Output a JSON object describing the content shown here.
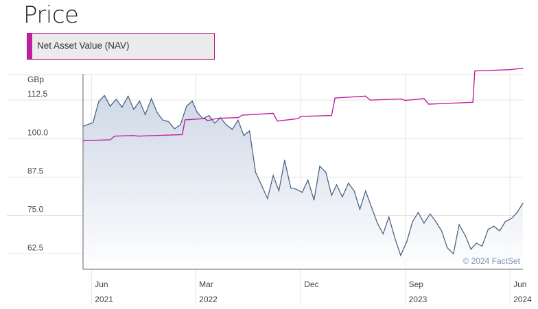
{
  "page": {
    "title": "Price"
  },
  "legend": {
    "label": "Net Asset Value (NAV)"
  },
  "colors": {
    "nav": "#c01ea0",
    "price": "#4a6585",
    "price_fill": "#c8d2e3",
    "grid": "#e3e3e3"
  },
  "chart_data": {
    "type": "line",
    "ylabel": "GBp",
    "ylim": [
      57.5,
      121
    ],
    "yticks": [
      62.5,
      75.0,
      87.5,
      100.0,
      112.5
    ],
    "ytick_labels": [
      "62.5",
      "75.0",
      "87.5",
      "100.0",
      "112.5"
    ],
    "xlim": [
      "2021-05-10",
      "2024-07-05"
    ],
    "xticks": [
      {
        "date": "2021-06-01",
        "month": "Jun",
        "year": "2021"
      },
      {
        "date": "2022-03-01",
        "month": "Mar",
        "year": "2022"
      },
      {
        "date": "2022-12-01",
        "month": "Dec",
        "year": ""
      },
      {
        "date": "2023-09-01",
        "month": "Sep",
        "year": "2023"
      },
      {
        "date": "2024-06-01",
        "month": "Jun",
        "year": "2024"
      }
    ],
    "watermark": "© 2024 FactSet",
    "series": [
      {
        "name": "Net Asset Value (NAV)",
        "style": "step",
        "x": [
          "2021-05-10",
          "2021-07-20",
          "2021-08-01",
          "2021-09-20",
          "2021-10-01",
          "2022-01-25",
          "2022-02-01",
          "2022-03-25",
          "2022-04-01",
          "2022-04-20",
          "2022-05-01",
          "2022-06-20",
          "2022-07-01",
          "2022-09-20",
          "2022-10-01",
          "2022-11-25",
          "2022-12-01",
          "2023-02-20",
          "2023-03-01",
          "2023-05-20",
          "2023-06-01",
          "2023-08-20",
          "2023-09-01",
          "2023-10-20",
          "2023-11-01",
          "2024-02-25",
          "2024-03-01",
          "2024-06-01",
          "2024-07-05"
        ],
        "y": [
          99.3,
          99.6,
          100.8,
          101.0,
          100.8,
          101.3,
          106.1,
          106.5,
          105.8,
          106.4,
          106.6,
          106.8,
          107.6,
          108.2,
          105.7,
          106.5,
          107.2,
          107.5,
          113.2,
          113.8,
          112.5,
          112.9,
          112.4,
          113.0,
          111.2,
          111.8,
          122.0,
          122.4,
          122.9
        ]
      },
      {
        "name": "Price",
        "style": "line",
        "x": [
          "2021-05-10",
          "2021-06-05",
          "2021-06-20",
          "2021-07-05",
          "2021-07-20",
          "2021-08-05",
          "2021-08-20",
          "2021-09-05",
          "2021-09-20",
          "2021-10-05",
          "2021-10-20",
          "2021-11-05",
          "2021-11-20",
          "2021-12-05",
          "2021-12-20",
          "2022-01-05",
          "2022-01-20",
          "2022-02-05",
          "2022-02-20",
          "2022-03-05",
          "2022-03-20",
          "2022-04-05",
          "2022-04-20",
          "2022-05-05",
          "2022-05-20",
          "2022-06-05",
          "2022-06-20",
          "2022-07-05",
          "2022-07-20",
          "2022-08-05",
          "2022-08-20",
          "2022-09-05",
          "2022-09-20",
          "2022-10-05",
          "2022-10-20",
          "2022-11-05",
          "2022-11-20",
          "2022-12-05",
          "2022-12-20",
          "2023-01-05",
          "2023-01-20",
          "2023-02-05",
          "2023-02-20",
          "2023-03-05",
          "2023-03-20",
          "2023-04-05",
          "2023-04-20",
          "2023-05-05",
          "2023-05-20",
          "2023-06-05",
          "2023-06-20",
          "2023-07-05",
          "2023-07-20",
          "2023-08-05",
          "2023-08-20",
          "2023-09-05",
          "2023-09-20",
          "2023-10-05",
          "2023-10-20",
          "2023-11-05",
          "2023-11-20",
          "2023-12-05",
          "2023-12-20",
          "2024-01-05",
          "2024-01-20",
          "2024-02-05",
          "2024-02-20",
          "2024-03-05",
          "2024-03-20",
          "2024-04-05",
          "2024-04-20",
          "2024-05-05",
          "2024-05-20",
          "2024-06-05",
          "2024-06-20",
          "2024-07-05"
        ],
        "y": [
          104.0,
          105.2,
          112.0,
          114.0,
          110.5,
          112.8,
          110.2,
          113.8,
          109.5,
          112.2,
          107.8,
          113.0,
          108.5,
          106.0,
          105.5,
          103.2,
          104.5,
          110.5,
          112.2,
          108.5,
          106.5,
          107.5,
          105.0,
          106.8,
          104.5,
          103.0,
          106.0,
          101.0,
          102.5,
          89.0,
          85.0,
          80.5,
          88.0,
          83.0,
          93.0,
          84.0,
          83.5,
          82.5,
          86.5,
          80.0,
          91.0,
          89.0,
          81.5,
          85.0,
          81.0,
          85.5,
          83.0,
          77.0,
          83.0,
          77.5,
          72.5,
          69.0,
          74.5,
          67.5,
          62.0,
          66.5,
          73.0,
          76.0,
          72.5,
          75.5,
          73.0,
          70.0,
          64.5,
          62.5,
          72.0,
          68.5,
          64.0,
          66.0,
          65.0,
          70.5,
          71.5,
          70.0,
          73.0,
          74.0,
          76.0,
          79.0
        ]
      }
    ]
  }
}
